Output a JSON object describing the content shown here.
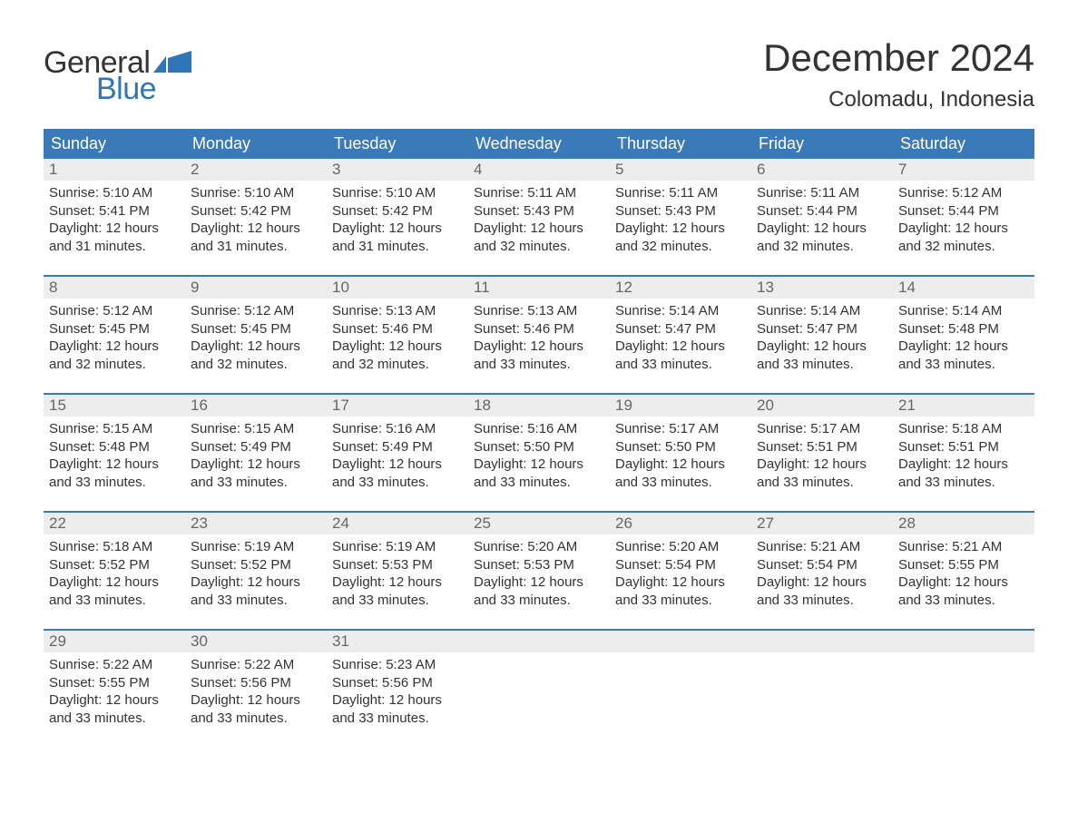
{
  "logo": {
    "text1": "General",
    "text2": "Blue",
    "flag_color": "#2f76b8",
    "text1_color": "#333333",
    "text2_color": "#2f76b8"
  },
  "title": "December 2024",
  "location": "Colomadu, Indonesia",
  "colors": {
    "header_bg": "#3a7ab9",
    "header_text": "#ffffff",
    "daynum_bg": "#ededed",
    "daynum_text": "#666666",
    "body_text": "#333333",
    "week_border": "#3a7ab9",
    "page_bg": "#ffffff"
  },
  "day_headers": [
    "Sunday",
    "Monday",
    "Tuesday",
    "Wednesday",
    "Thursday",
    "Friday",
    "Saturday"
  ],
  "weeks": [
    [
      {
        "n": "1",
        "sunrise": "5:10 AM",
        "sunset": "5:41 PM",
        "dl": "12 hours and 31 minutes."
      },
      {
        "n": "2",
        "sunrise": "5:10 AM",
        "sunset": "5:42 PM",
        "dl": "12 hours and 31 minutes."
      },
      {
        "n": "3",
        "sunrise": "5:10 AM",
        "sunset": "5:42 PM",
        "dl": "12 hours and 31 minutes."
      },
      {
        "n": "4",
        "sunrise": "5:11 AM",
        "sunset": "5:43 PM",
        "dl": "12 hours and 32 minutes."
      },
      {
        "n": "5",
        "sunrise": "5:11 AM",
        "sunset": "5:43 PM",
        "dl": "12 hours and 32 minutes."
      },
      {
        "n": "6",
        "sunrise": "5:11 AM",
        "sunset": "5:44 PM",
        "dl": "12 hours and 32 minutes."
      },
      {
        "n": "7",
        "sunrise": "5:12 AM",
        "sunset": "5:44 PM",
        "dl": "12 hours and 32 minutes."
      }
    ],
    [
      {
        "n": "8",
        "sunrise": "5:12 AM",
        "sunset": "5:45 PM",
        "dl": "12 hours and 32 minutes."
      },
      {
        "n": "9",
        "sunrise": "5:12 AM",
        "sunset": "5:45 PM",
        "dl": "12 hours and 32 minutes."
      },
      {
        "n": "10",
        "sunrise": "5:13 AM",
        "sunset": "5:46 PM",
        "dl": "12 hours and 32 minutes."
      },
      {
        "n": "11",
        "sunrise": "5:13 AM",
        "sunset": "5:46 PM",
        "dl": "12 hours and 33 minutes."
      },
      {
        "n": "12",
        "sunrise": "5:14 AM",
        "sunset": "5:47 PM",
        "dl": "12 hours and 33 minutes."
      },
      {
        "n": "13",
        "sunrise": "5:14 AM",
        "sunset": "5:47 PM",
        "dl": "12 hours and 33 minutes."
      },
      {
        "n": "14",
        "sunrise": "5:14 AM",
        "sunset": "5:48 PM",
        "dl": "12 hours and 33 minutes."
      }
    ],
    [
      {
        "n": "15",
        "sunrise": "5:15 AM",
        "sunset": "5:48 PM",
        "dl": "12 hours and 33 minutes."
      },
      {
        "n": "16",
        "sunrise": "5:15 AM",
        "sunset": "5:49 PM",
        "dl": "12 hours and 33 minutes."
      },
      {
        "n": "17",
        "sunrise": "5:16 AM",
        "sunset": "5:49 PM",
        "dl": "12 hours and 33 minutes."
      },
      {
        "n": "18",
        "sunrise": "5:16 AM",
        "sunset": "5:50 PM",
        "dl": "12 hours and 33 minutes."
      },
      {
        "n": "19",
        "sunrise": "5:17 AM",
        "sunset": "5:50 PM",
        "dl": "12 hours and 33 minutes."
      },
      {
        "n": "20",
        "sunrise": "5:17 AM",
        "sunset": "5:51 PM",
        "dl": "12 hours and 33 minutes."
      },
      {
        "n": "21",
        "sunrise": "5:18 AM",
        "sunset": "5:51 PM",
        "dl": "12 hours and 33 minutes."
      }
    ],
    [
      {
        "n": "22",
        "sunrise": "5:18 AM",
        "sunset": "5:52 PM",
        "dl": "12 hours and 33 minutes."
      },
      {
        "n": "23",
        "sunrise": "5:19 AM",
        "sunset": "5:52 PM",
        "dl": "12 hours and 33 minutes."
      },
      {
        "n": "24",
        "sunrise": "5:19 AM",
        "sunset": "5:53 PM",
        "dl": "12 hours and 33 minutes."
      },
      {
        "n": "25",
        "sunrise": "5:20 AM",
        "sunset": "5:53 PM",
        "dl": "12 hours and 33 minutes."
      },
      {
        "n": "26",
        "sunrise": "5:20 AM",
        "sunset": "5:54 PM",
        "dl": "12 hours and 33 minutes."
      },
      {
        "n": "27",
        "sunrise": "5:21 AM",
        "sunset": "5:54 PM",
        "dl": "12 hours and 33 minutes."
      },
      {
        "n": "28",
        "sunrise": "5:21 AM",
        "sunset": "5:55 PM",
        "dl": "12 hours and 33 minutes."
      }
    ],
    [
      {
        "n": "29",
        "sunrise": "5:22 AM",
        "sunset": "5:55 PM",
        "dl": "12 hours and 33 minutes."
      },
      {
        "n": "30",
        "sunrise": "5:22 AM",
        "sunset": "5:56 PM",
        "dl": "12 hours and 33 minutes."
      },
      {
        "n": "31",
        "sunrise": "5:23 AM",
        "sunset": "5:56 PM",
        "dl": "12 hours and 33 minutes."
      },
      null,
      null,
      null,
      null
    ]
  ],
  "labels": {
    "sunrise": "Sunrise: ",
    "sunset": "Sunset: ",
    "daylight": "Daylight: "
  }
}
